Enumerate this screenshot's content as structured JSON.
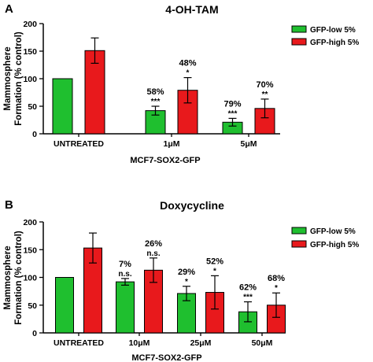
{
  "panels": [
    {
      "letter": "A",
      "title": "4-OH-TAM",
      "ylabel_line1": "Mammosphere",
      "ylabel_line2": "Formation (% control)",
      "xlabel": "MCF7-SOX2-GFP",
      "legend": [
        "GFP-low 5%",
        "GFP-high 5%"
      ]
    },
    {
      "letter": "B",
      "title": "Doxycycline",
      "ylabel_line1": "Mammosphere",
      "ylabel_line2": "Formation (% control)",
      "xlabel": "MCF7-SOX2-GFP",
      "legend": [
        "GFP-low 5%",
        "GFP-high 5%"
      ]
    }
  ],
  "chart_data": [
    {
      "type": "bar",
      "title": "4-OH-TAM",
      "xlabel": "MCF7-SOX2-GFP",
      "ylabel": "Mammosphere Formation (% control)",
      "ylim": [
        0,
        200
      ],
      "yticks": [
        "0",
        "50",
        "100",
        "150",
        "200"
      ],
      "categories": [
        "UNTREATED",
        "1μM",
        "5μM"
      ],
      "colors": [
        "#1fbf2f",
        "#e8191c"
      ],
      "legend_position": "top-right",
      "series": [
        {
          "name": "GFP-low 5%",
          "values": [
            100,
            42,
            21
          ],
          "errors": [
            0,
            8,
            7
          ],
          "percent_labels": [
            "",
            "58%",
            "79%"
          ],
          "significance": [
            "",
            "***",
            "***"
          ]
        },
        {
          "name": "GFP-high 5%",
          "values": [
            151,
            79,
            46
          ],
          "errors": [
            23,
            23,
            17
          ],
          "percent_labels": [
            "",
            "48%",
            "70%"
          ],
          "significance": [
            "",
            "*",
            "**"
          ]
        }
      ]
    },
    {
      "type": "bar",
      "title": "Doxycycline",
      "xlabel": "MCF7-SOX2-GFP",
      "ylabel": "Mammosphere Formation (% control)",
      "ylim": [
        0,
        200
      ],
      "yticks": [
        "0",
        "50",
        "100",
        "150",
        "200"
      ],
      "categories": [
        "UNTREATED",
        "10μM",
        "25μM",
        "50μM"
      ],
      "colors": [
        "#1fbf2f",
        "#e8191c"
      ],
      "legend_position": "top-right",
      "series": [
        {
          "name": "GFP-low 5%",
          "values": [
            100,
            92,
            71,
            38
          ],
          "errors": [
            0,
            6,
            13,
            18
          ],
          "percent_labels": [
            "",
            "7%",
            "29%",
            "62%"
          ],
          "significance": [
            "",
            "n.s.",
            "*",
            "***"
          ]
        },
        {
          "name": "GFP-high 5%",
          "values": [
            153,
            113,
            73,
            50
          ],
          "errors": [
            27,
            22,
            30,
            22
          ],
          "percent_labels": [
            "",
            "26%",
            "52%",
            "68%"
          ],
          "significance": [
            "",
            "n.s.",
            "*",
            "*"
          ]
        }
      ]
    }
  ]
}
